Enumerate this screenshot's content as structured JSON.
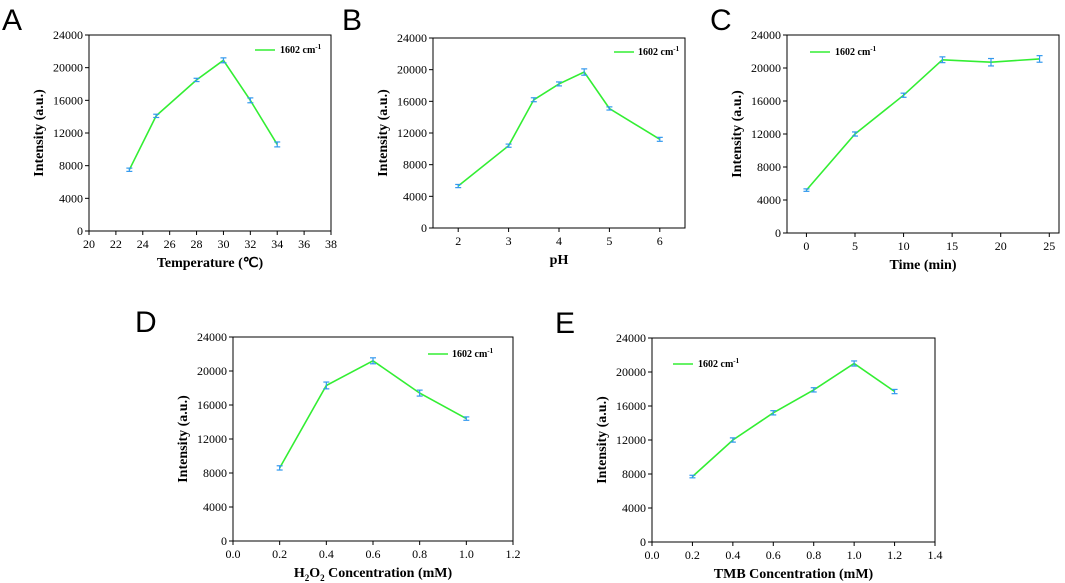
{
  "colors": {
    "line": "#33ee33",
    "error": "#3399ee",
    "axis": "#000000"
  },
  "chart_data": [
    {
      "panel": "A",
      "type": "line",
      "xlabel": "Temperature (℃)",
      "ylabel": "Intensity (a.u.)",
      "xlim": [
        20,
        38
      ],
      "ylim": [
        0,
        24000
      ],
      "xticks": [
        "20",
        "22",
        "24",
        "26",
        "28",
        "30",
        "32",
        "34",
        "36",
        "38"
      ],
      "yticks": [
        "0",
        "4000",
        "8000",
        "12000",
        "16000",
        "20000",
        "24000"
      ],
      "legend": {
        "label": "1602 cm",
        "sup": "-1",
        "position": "top-right"
      },
      "series": [
        {
          "name": "1602 cm-1",
          "x": [
            23,
            25,
            28,
            30,
            32,
            34
          ],
          "y": [
            7500,
            14100,
            18500,
            20900,
            16000,
            10600
          ],
          "err": [
            200,
            200,
            200,
            300,
            300,
            300
          ]
        }
      ]
    },
    {
      "panel": "B",
      "type": "line",
      "xlabel": "pH",
      "ylabel": "Intensity (a.u.)",
      "xlim": [
        1.5,
        6.5
      ],
      "ylim": [
        0,
        24000
      ],
      "xticks": [
        "2",
        "3",
        "4",
        "5",
        "6"
      ],
      "yticks": [
        "0",
        "4000",
        "8000",
        "12000",
        "16000",
        "20000",
        "24000"
      ],
      "legend": {
        "label": "1602 cm",
        "sup": "-1",
        "position": "top-right"
      },
      "series": [
        {
          "name": "1602 cm-1",
          "x": [
            2,
            3,
            3.5,
            4,
            4.5,
            5,
            6
          ],
          "y": [
            5300,
            10400,
            16200,
            18200,
            19700,
            15100,
            11200
          ],
          "err": [
            200,
            200,
            250,
            250,
            400,
            200,
            250
          ]
        }
      ]
    },
    {
      "panel": "C",
      "type": "line",
      "xlabel": "Time (min)",
      "ylabel": "Intensity (a.u.)",
      "xlim": [
        -2,
        26
      ],
      "ylim": [
        0,
        24000
      ],
      "xticks": [
        "0",
        "5",
        "10",
        "15",
        "20",
        "25"
      ],
      "yticks": [
        "0",
        "4000",
        "8000",
        "12000",
        "16000",
        "20000",
        "24000"
      ],
      "legend": {
        "label": "1602 cm",
        "sup": "-1",
        "position": "top-left"
      },
      "series": [
        {
          "name": "1602 cm-1",
          "x": [
            0,
            5,
            10,
            14,
            19,
            24
          ],
          "y": [
            5200,
            12000,
            16700,
            21000,
            20700,
            21100
          ],
          "err": [
            150,
            250,
            250,
            350,
            450,
            400
          ]
        }
      ]
    },
    {
      "panel": "D",
      "type": "line",
      "xlabel_main": "Concentration (mM)",
      "xlabel_chem": [
        "H",
        "2",
        "O",
        "2"
      ],
      "ylabel": "Intensity (a.u.)",
      "xlim": [
        0.0,
        1.2
      ],
      "ylim": [
        0,
        24000
      ],
      "xticks": [
        "0.0",
        "0.2",
        "0.4",
        "0.6",
        "0.8",
        "1.0",
        "1.2"
      ],
      "yticks": [
        "0",
        "4000",
        "8000",
        "12000",
        "16000",
        "20000",
        "24000"
      ],
      "legend": {
        "label": "1602 cm",
        "sup": "-1",
        "position": "top-right"
      },
      "series": [
        {
          "name": "1602 cm-1",
          "x": [
            0.2,
            0.4,
            0.6,
            0.8,
            1.0
          ],
          "y": [
            8600,
            18300,
            21200,
            17400,
            14400
          ],
          "err": [
            250,
            400,
            350,
            350,
            200
          ]
        }
      ]
    },
    {
      "panel": "E",
      "type": "line",
      "xlabel": "TMB Concentration (mM)",
      "ylabel": "Intensity (a.u.)",
      "xlim": [
        0.0,
        1.4
      ],
      "ylim": [
        0,
        24000
      ],
      "xticks": [
        "0.0",
        "0.2",
        "0.4",
        "0.6",
        "0.8",
        "1.0",
        "1.2",
        "1.4"
      ],
      "yticks": [
        "0",
        "4000",
        "8000",
        "12000",
        "16000",
        "20000",
        "24000"
      ],
      "legend": {
        "label": "1602 cm",
        "sup": "-1",
        "position": "top-left"
      },
      "series": [
        {
          "name": "1602 cm-1",
          "x": [
            0.2,
            0.4,
            0.6,
            0.8,
            1.0,
            1.2
          ],
          "y": [
            7700,
            12000,
            15200,
            17900,
            21000,
            17700
          ],
          "err": [
            150,
            250,
            250,
            250,
            300,
            250
          ]
        }
      ]
    }
  ]
}
